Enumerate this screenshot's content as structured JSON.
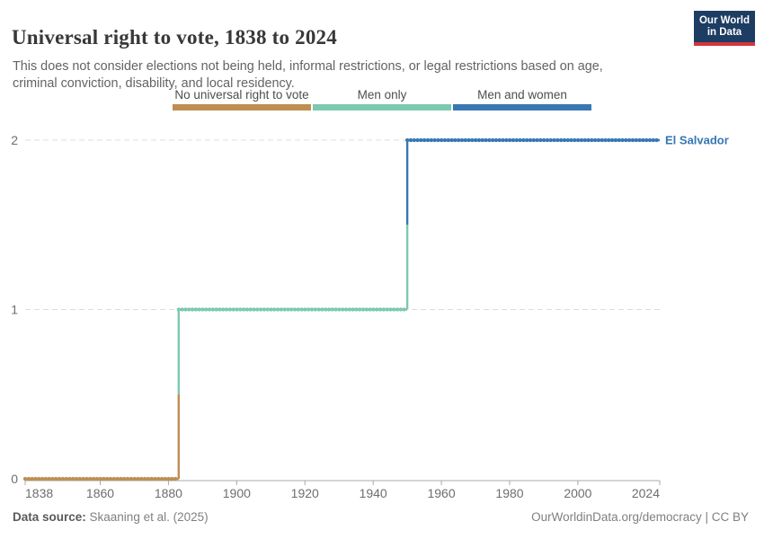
{
  "header": {
    "title": "Universal right to vote, 1838 to 2024",
    "subtitle": "This does not consider elections not being held, informal restrictions, or legal restrictions based on age, criminal conviction, disability, and local residency.",
    "logo_line1": "Our World",
    "logo_line2": "in Data"
  },
  "legend": {
    "items": [
      {
        "label": "No universal right to vote",
        "color": "#BE8E52"
      },
      {
        "label": "Men only",
        "color": "#7CC9B1"
      },
      {
        "label": "Men and women",
        "color": "#3877B2"
      }
    ]
  },
  "chart_data": {
    "type": "line",
    "step": true,
    "title": "Universal right to vote, 1838 to 2024",
    "entity": "El Salvador",
    "series_label": "El Salvador",
    "series_label_color": "#3577B4",
    "x_range": [
      1838,
      2024
    ],
    "x_ticks": [
      1838,
      1860,
      1880,
      1900,
      1920,
      1940,
      1960,
      1980,
      2000,
      2024
    ],
    "y_ticks": [
      0,
      1,
      2
    ],
    "ylim": [
      0,
      2
    ],
    "grid": true,
    "legend_position": "top",
    "value_categories": {
      "0": "No universal right to vote",
      "1": "Men only",
      "2": "Men and women"
    },
    "segments": [
      {
        "start_year": 1838,
        "end_year": 1883,
        "value": 0,
        "category": "No universal right to vote",
        "color": "#BE8E52"
      },
      {
        "start_year": 1883,
        "end_year": 1950,
        "value": 1,
        "category": "Men only",
        "color": "#7CC9B1"
      },
      {
        "start_year": 1950,
        "end_year": 2024,
        "value": 2,
        "category": "Men and women",
        "color": "#3877B2"
      }
    ],
    "colors": {
      "grid": "#DCDCDC",
      "axis": "#A8A8A8",
      "tick_label": "#6E6E6E"
    }
  },
  "footer": {
    "source_label": "Data source:",
    "source_value": " Skaaning et al. (2025)",
    "credit": "OurWorldinData.org/democracy | CC BY"
  }
}
